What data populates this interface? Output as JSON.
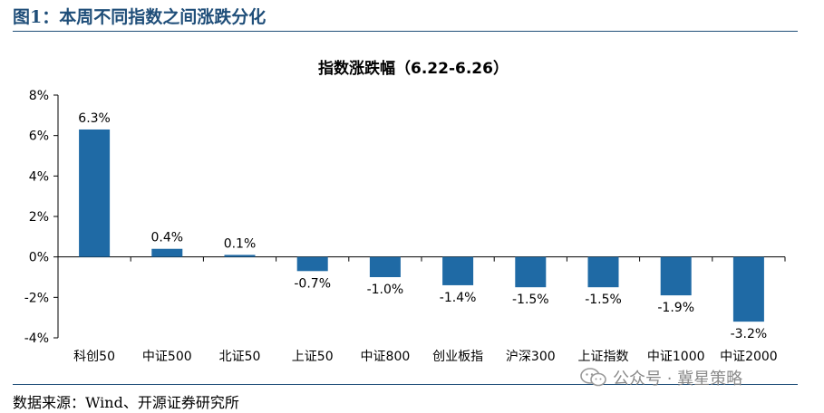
{
  "figure": {
    "title": "图1：本周不同指数之间涨跌分化",
    "source": "数据来源：Wind、开源证券研究所",
    "watermark": "公众号 · 冀星策略"
  },
  "colors": {
    "bar": "#1f6aa5",
    "title": "#1f4e79"
  },
  "chart_data": {
    "type": "bar",
    "title": "指数涨跌幅（6.22-6.26）",
    "xlabel": "",
    "ylabel": "",
    "categories": [
      "科创50",
      "中证500",
      "北证50",
      "上证50",
      "中证800",
      "创业板指",
      "沪深300",
      "上证指数",
      "中证1000",
      "中证2000"
    ],
    "values": [
      6.3,
      0.4,
      0.1,
      -0.7,
      -1.0,
      -1.4,
      -1.5,
      -1.5,
      -1.9,
      -3.2
    ],
    "value_labels": [
      "6.3%",
      "0.4%",
      "0.1%",
      "-0.7%",
      "-1.0%",
      "-1.4%",
      "-1.5%",
      "-1.5%",
      "-1.9%",
      "-3.2%"
    ],
    "ylim": [
      -4,
      8
    ],
    "yticks": [
      -4,
      -2,
      0,
      2,
      4,
      6,
      8
    ],
    "ytick_labels": [
      "-4%",
      "-2%",
      "0%",
      "2%",
      "4%",
      "6%",
      "8%"
    ],
    "grid": false,
    "legend": "none"
  }
}
